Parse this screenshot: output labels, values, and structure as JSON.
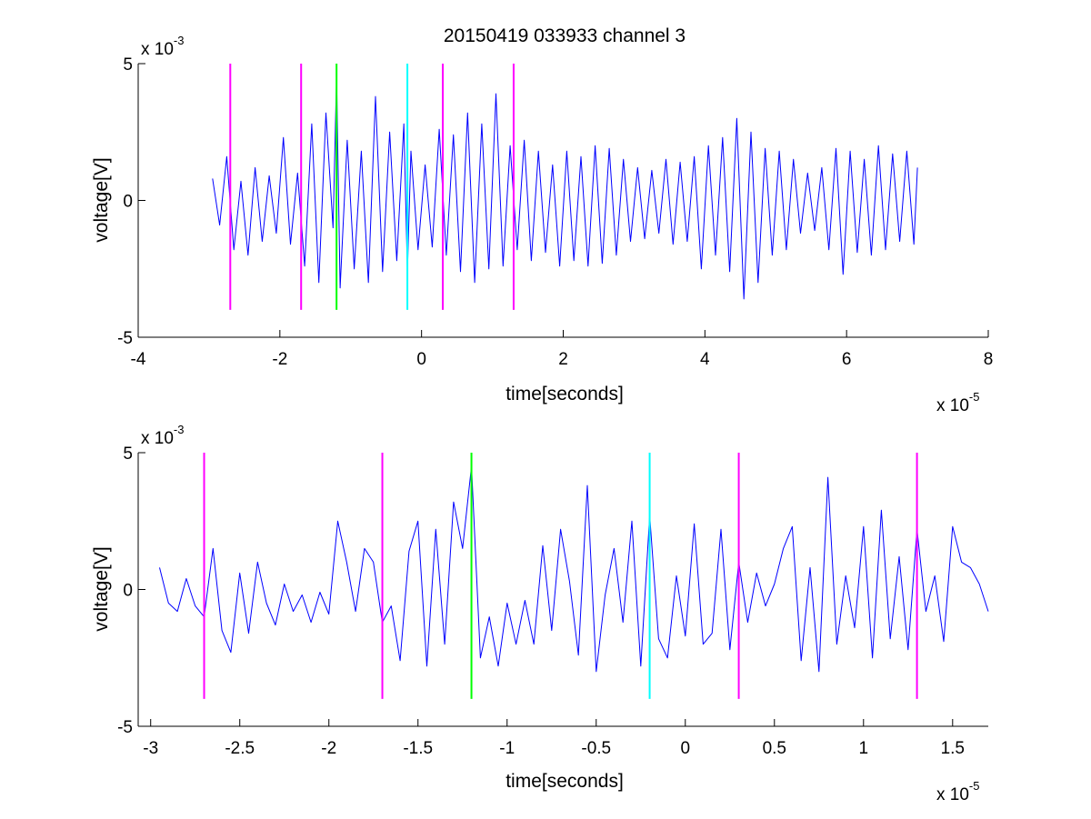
{
  "chart_data": [
    {
      "type": "line",
      "title": "20150419 033933 channel 3",
      "xlabel": "time[seconds]",
      "ylabel": "voltage[V]",
      "x_exponent_label": "x 10",
      "x_exponent": "-5",
      "y_exponent_label": "x 10",
      "y_exponent": "-3",
      "xlim": [
        -4,
        8
      ],
      "ylim": [
        -5,
        5
      ],
      "x_ticks": [
        -4,
        -2,
        0,
        2,
        4,
        6,
        8
      ],
      "x_tick_labels": [
        "-4",
        "-2",
        "0",
        "2",
        "4",
        "6",
        "8"
      ],
      "y_ticks": [
        -5,
        0,
        5
      ],
      "y_tick_labels": [
        "-5",
        "0",
        "5"
      ],
      "grid": false,
      "series": [
        {
          "color": "#0000ff",
          "x": [
            -2.95,
            -2.85,
            -2.75,
            -2.65,
            -2.55,
            -2.45,
            -2.35,
            -2.25,
            -2.15,
            -2.05,
            -1.95,
            -1.85,
            -1.75,
            -1.65,
            -1.55,
            -1.45,
            -1.35,
            -1.25,
            -1.2,
            -1.15,
            -1.05,
            -0.95,
            -0.85,
            -0.75,
            -0.65,
            -0.55,
            -0.45,
            -0.35,
            -0.25,
            -0.2,
            -0.15,
            -0.05,
            0.05,
            0.15,
            0.25,
            0.35,
            0.45,
            0.55,
            0.65,
            0.75,
            0.85,
            0.95,
            1.05,
            1.15,
            1.25,
            1.35,
            1.45,
            1.55,
            1.65,
            1.75,
            1.85,
            1.95,
            2.05,
            2.15,
            2.25,
            2.35,
            2.45,
            2.55,
            2.65,
            2.75,
            2.85,
            2.95,
            3.05,
            3.15,
            3.25,
            3.35,
            3.45,
            3.55,
            3.65,
            3.75,
            3.85,
            3.95,
            4.05,
            4.15,
            4.25,
            4.35,
            4.45,
            4.55,
            4.65,
            4.75,
            4.85,
            4.95,
            5.05,
            5.15,
            5.25,
            5.35,
            5.45,
            5.55,
            5.65,
            5.75,
            5.85,
            5.95,
            6.05,
            6.15,
            6.25,
            6.35,
            6.45,
            6.55,
            6.65,
            6.75,
            6.85,
            6.95,
            7.0
          ],
          "y": [
            0.8,
            -0.9,
            1.6,
            -1.8,
            0.7,
            -2.0,
            1.2,
            -1.5,
            0.9,
            -1.2,
            2.3,
            -1.6,
            1.0,
            -2.4,
            2.8,
            -3.0,
            3.2,
            -1.0,
            4.5,
            -3.2,
            2.2,
            -2.5,
            1.8,
            -3.0,
            3.8,
            -2.6,
            2.5,
            -2.2,
            2.8,
            -2.6,
            1.8,
            -1.8,
            1.3,
            -1.7,
            2.6,
            -2.0,
            2.4,
            -2.6,
            3.2,
            -3.0,
            2.8,
            -2.5,
            3.9,
            -2.4,
            2.0,
            -1.8,
            2.2,
            -2.2,
            1.8,
            -1.9,
            1.3,
            -2.4,
            1.8,
            -2.2,
            1.6,
            -2.4,
            2.0,
            -2.3,
            1.9,
            -2.0,
            1.5,
            -1.5,
            1.2,
            -1.4,
            1.1,
            -1.2,
            1.5,
            -1.6,
            1.4,
            -1.5,
            1.6,
            -2.5,
            2.0,
            -2.0,
            2.3,
            -2.6,
            3.0,
            -3.6,
            2.5,
            -3.0,
            1.9,
            -2.0,
            1.8,
            -1.8,
            1.5,
            -1.2,
            1.0,
            -1.1,
            1.2,
            -1.8,
            1.9,
            -2.7,
            1.8,
            -1.9,
            1.5,
            -2.0,
            2.0,
            -1.8,
            1.7,
            -1.5,
            1.8,
            -1.6,
            1.2
          ]
        },
        {
          "color": "#ff00ff",
          "marker_x": -2.7,
          "y_range": [
            -4,
            5
          ]
        },
        {
          "color": "#ff00ff",
          "marker_x": -1.7,
          "y_range": [
            -4,
            5
          ]
        },
        {
          "color": "#00ff00",
          "marker_x": -1.2,
          "y_range": [
            -4,
            5
          ]
        },
        {
          "color": "#00ffff",
          "marker_x": -0.2,
          "y_range": [
            -4,
            5
          ]
        },
        {
          "color": "#ff00ff",
          "marker_x": 0.3,
          "y_range": [
            -4,
            5
          ]
        },
        {
          "color": "#ff00ff",
          "marker_x": 1.3,
          "y_range": [
            -4,
            5
          ]
        }
      ]
    },
    {
      "type": "line",
      "xlabel": "time[seconds]",
      "ylabel": "voltage[V]",
      "x_exponent_label": "x 10",
      "x_exponent": "-5",
      "y_exponent_label": "x 10",
      "y_exponent": "-3",
      "xlim": [
        -3.07,
        1.7
      ],
      "ylim": [
        -5,
        5
      ],
      "x_ticks": [
        -3,
        -2.5,
        -2,
        -1.5,
        -1,
        -0.5,
        0,
        0.5,
        1,
        1.5
      ],
      "x_tick_labels": [
        "-3",
        "-2.5",
        "-2",
        "-1.5",
        "-1",
        "-0.5",
        "0",
        "0.5",
        "1",
        "1.5"
      ],
      "y_ticks": [
        -5,
        0,
        5
      ],
      "y_tick_labels": [
        "-5",
        "0",
        "5"
      ],
      "grid": false,
      "series": [
        {
          "color": "#0000ff",
          "x": [
            -2.95,
            -2.9,
            -2.85,
            -2.8,
            -2.75,
            -2.7,
            -2.65,
            -2.6,
            -2.55,
            -2.5,
            -2.45,
            -2.4,
            -2.35,
            -2.3,
            -2.25,
            -2.2,
            -2.15,
            -2.1,
            -2.05,
            -2.0,
            -1.95,
            -1.9,
            -1.85,
            -1.8,
            -1.75,
            -1.7,
            -1.65,
            -1.6,
            -1.55,
            -1.5,
            -1.45,
            -1.4,
            -1.35,
            -1.3,
            -1.25,
            -1.2,
            -1.15,
            -1.1,
            -1.05,
            -1.0,
            -0.95,
            -0.9,
            -0.85,
            -0.8,
            -0.75,
            -0.7,
            -0.65,
            -0.6,
            -0.55,
            -0.5,
            -0.45,
            -0.4,
            -0.35,
            -0.3,
            -0.25,
            -0.2,
            -0.15,
            -0.1,
            -0.05,
            0.0,
            0.05,
            0.1,
            0.15,
            0.2,
            0.25,
            0.3,
            0.35,
            0.4,
            0.45,
            0.5,
            0.55,
            0.6,
            0.65,
            0.7,
            0.75,
            0.8,
            0.85,
            0.9,
            0.95,
            1.0,
            1.05,
            1.1,
            1.15,
            1.2,
            1.25,
            1.3,
            1.35,
            1.4,
            1.45,
            1.5,
            1.55,
            1.6,
            1.65,
            1.7
          ],
          "y": [
            0.8,
            -0.5,
            -0.8,
            0.4,
            -0.6,
            -1.0,
            1.5,
            -1.5,
            -2.3,
            0.6,
            -1.6,
            1.0,
            -0.5,
            -1.3,
            0.2,
            -0.8,
            -0.2,
            -1.2,
            -0.1,
            -0.9,
            2.5,
            1.0,
            -0.8,
            1.5,
            1.0,
            -1.2,
            -0.6,
            -2.6,
            1.4,
            2.5,
            -2.8,
            2.2,
            -2.0,
            3.2,
            1.5,
            4.5,
            -2.5,
            -1.0,
            -2.8,
            -0.5,
            -2.0,
            -0.4,
            -2.0,
            1.6,
            -1.5,
            2.2,
            0.3,
            -2.4,
            3.8,
            -3.0,
            -0.2,
            1.5,
            -1.2,
            2.5,
            -2.8,
            2.7,
            -1.8,
            -2.5,
            0.5,
            -1.7,
            2.4,
            -2.0,
            -1.6,
            2.2,
            -2.2,
            1.0,
            -1.2,
            0.6,
            -0.6,
            0.2,
            1.5,
            2.3,
            -2.6,
            0.8,
            -3.0,
            4.1,
            -2.0,
            0.5,
            -1.4,
            2.3,
            -2.5,
            2.9,
            -1.8,
            1.2,
            -2.2,
            2.2,
            -0.8,
            0.5,
            -1.9,
            2.3,
            1.0,
            0.8,
            0.2,
            -0.8
          ]
        },
        {
          "color": "#ff00ff",
          "marker_x": -2.7,
          "y_range": [
            -4,
            5
          ]
        },
        {
          "color": "#ff00ff",
          "marker_x": -1.7,
          "y_range": [
            -4,
            5
          ]
        },
        {
          "color": "#00ff00",
          "marker_x": -1.2,
          "y_range": [
            -4,
            5
          ]
        },
        {
          "color": "#00ffff",
          "marker_x": -0.2,
          "y_range": [
            -4,
            5
          ]
        },
        {
          "color": "#ff00ff",
          "marker_x": 0.3,
          "y_range": [
            -4,
            5
          ]
        },
        {
          "color": "#ff00ff",
          "marker_x": 1.3,
          "y_range": [
            -4,
            5
          ]
        }
      ]
    }
  ]
}
